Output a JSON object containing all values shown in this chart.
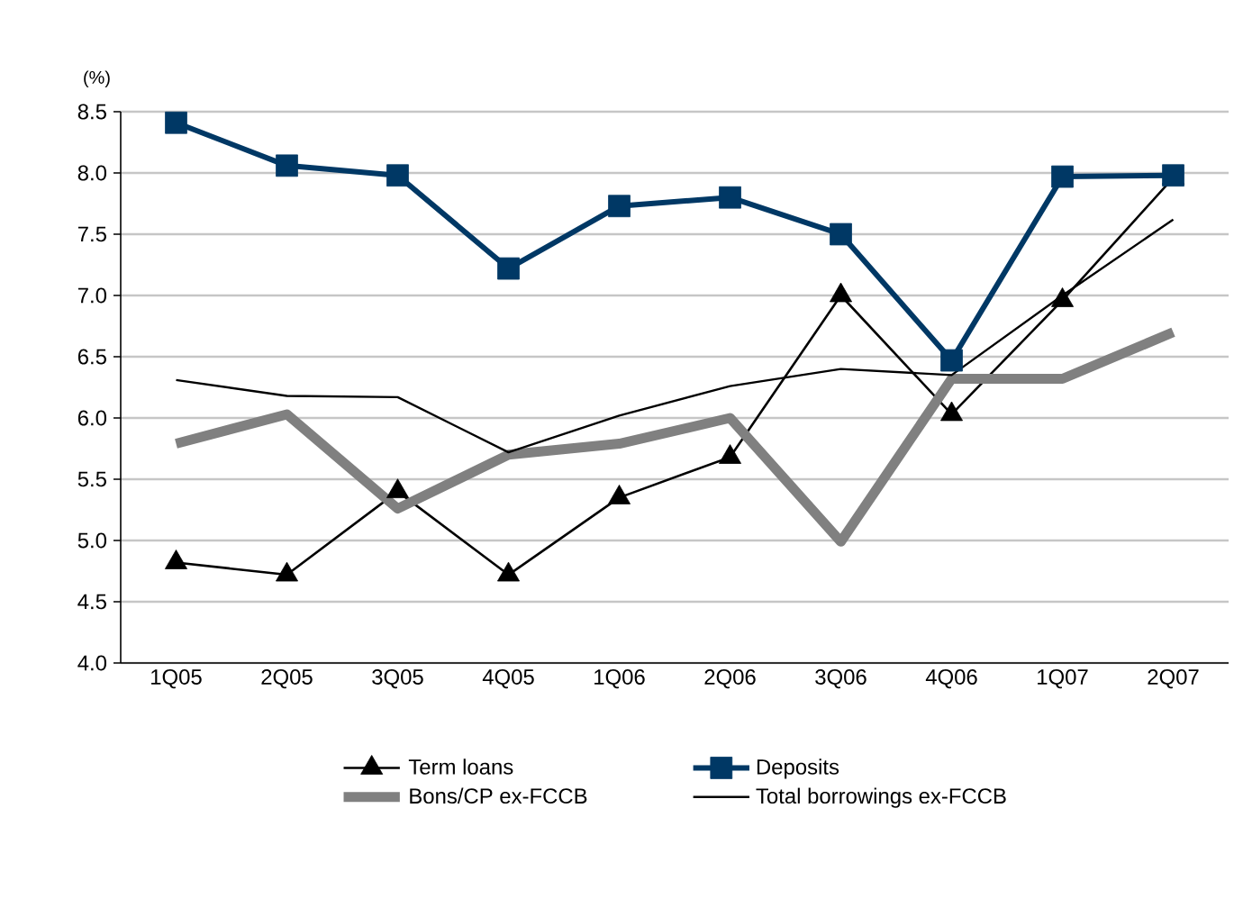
{
  "chart_data": {
    "type": "line",
    "ylabel": "(%)",
    "categories": [
      "1Q05",
      "2Q05",
      "3Q05",
      "4Q05",
      "1Q06",
      "2Q06",
      "3Q06",
      "4Q06",
      "1Q07",
      "2Q07"
    ],
    "series": [
      {
        "name": "Term loans",
        "color": "#000000",
        "marker": "triangle",
        "values": [
          4.82,
          4.72,
          5.4,
          4.72,
          5.35,
          5.68,
          7.0,
          6.03,
          6.96,
          7.96
        ]
      },
      {
        "name": "Deposits",
        "color": "#003865",
        "marker": "square",
        "values": [
          8.41,
          8.06,
          7.98,
          7.22,
          7.73,
          7.8,
          7.5,
          6.47,
          7.97,
          7.98
        ]
      },
      {
        "name": "Bons/CP ex-FCCB",
        "color": "#808080",
        "values": [
          5.79,
          6.03,
          5.26,
          5.7,
          5.79,
          6.0,
          4.99,
          6.32,
          6.32,
          6.7
        ]
      },
      {
        "name": "Total borrowings ex-FCCB",
        "color": "#000000",
        "values": [
          6.31,
          6.18,
          6.17,
          5.72,
          6.02,
          6.26,
          6.4,
          6.35,
          7.0,
          7.62
        ]
      }
    ],
    "ylim": [
      4.0,
      8.5
    ],
    "yticks": [
      {
        "value": 4.0,
        "label": "4.0"
      },
      {
        "value": 4.5,
        "label": "4.5"
      },
      {
        "value": 5.0,
        "label": "5.0"
      },
      {
        "value": 5.5,
        "label": "5.5"
      },
      {
        "value": 6.0,
        "label": "6.0"
      },
      {
        "value": 6.5,
        "label": "6.5"
      },
      {
        "value": 7.0,
        "label": "7.0"
      },
      {
        "value": 7.5,
        "label": "7.5"
      },
      {
        "value": 8.0,
        "label": "8.0"
      },
      {
        "value": 8.5,
        "label": "8.5"
      }
    ],
    "grid": "y",
    "legend": "bottom"
  }
}
